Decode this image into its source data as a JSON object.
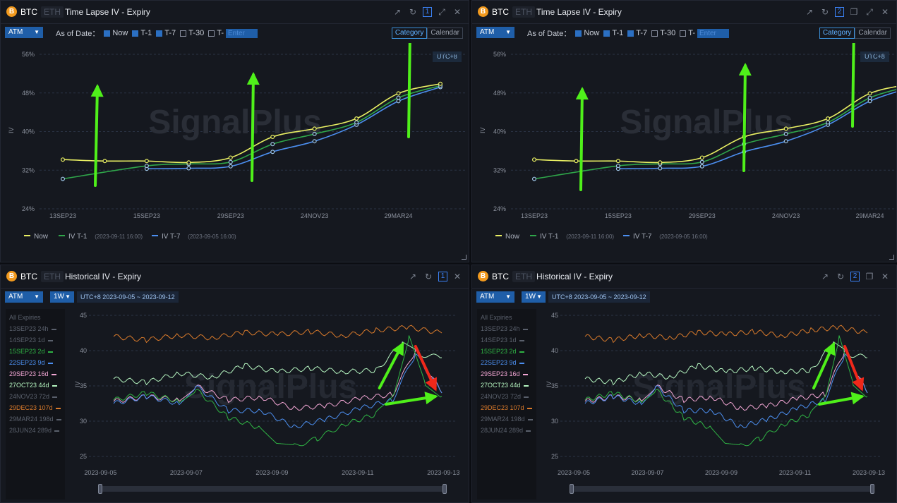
{
  "panels": [
    {
      "id": "tl1",
      "coin_symbol": "B",
      "coin": "BTC",
      "alt_coin": "ETH",
      "title": "Time Lapse IV - Expiry",
      "window_number": "1",
      "selector": "ATM",
      "as_of_label": "As of Date：",
      "checks": [
        {
          "label": "Now",
          "checked": true
        },
        {
          "label": "T-1",
          "checked": true
        },
        {
          "label": "T-7",
          "checked": true
        },
        {
          "label": "T-30",
          "checked": false
        },
        {
          "label": "T-",
          "checked": false
        }
      ],
      "enter_placeholder": "Enter",
      "toggle": [
        "Category",
        "Calendar"
      ],
      "utc": "UTC+8"
    },
    {
      "id": "tl2",
      "coin_symbol": "B",
      "coin": "BTC",
      "alt_coin": "ETH",
      "title": "Time Lapse IV - Expiry",
      "window_number": "2",
      "selector": "ATM",
      "as_of_label": "As of Date：",
      "checks": [
        {
          "label": "Now",
          "checked": true
        },
        {
          "label": "T-1",
          "checked": true
        },
        {
          "label": "T-7",
          "checked": true
        },
        {
          "label": "T-30",
          "checked": false
        },
        {
          "label": "T-",
          "checked": false
        }
      ],
      "enter_placeholder": "Enter",
      "toggle": [
        "Category",
        "Calendar"
      ],
      "utc": "UTC+8"
    },
    {
      "id": "h1",
      "coin_symbol": "B",
      "coin": "BTC",
      "alt_coin": "ETH",
      "title": "Historical IV - Expiry",
      "window_number": "1",
      "selector": "ATM",
      "period": "1W",
      "date_range": "UTC+8 2023-09-05 ~ 2023-09-12"
    },
    {
      "id": "h2",
      "coin_symbol": "B",
      "coin": "BTC",
      "alt_coin": "ETH",
      "title": "Historical IV - Expiry",
      "window_number": "2",
      "selector": "ATM",
      "period": "1W",
      "date_range": "UTC+8 2023-09-05 ~ 2023-09-12"
    }
  ],
  "watermark": "SignalPlus",
  "expiries": [
    {
      "label": "All Expiries",
      "color": "#5a606c"
    },
    {
      "label": "13SEP23 24h",
      "color": "#5a606c"
    },
    {
      "label": "14SEP23 1d",
      "color": "#5a606c"
    },
    {
      "label": "15SEP23 2d",
      "color": "#2fb344"
    },
    {
      "label": "22SEP23 9d",
      "color": "#4c8ff0"
    },
    {
      "label": "29SEP23 16d",
      "color": "#f2a6d4"
    },
    {
      "label": "27OCT23 44d",
      "color": "#b5f5c0"
    },
    {
      "label": "24NOV23 72d",
      "color": "#5a606c"
    },
    {
      "label": "29DEC23 107d",
      "color": "#d97a2b"
    },
    {
      "label": "29MAR24 198d",
      "color": "#5a606c"
    },
    {
      "label": "28JUN24 289d",
      "color": "#5a606c"
    }
  ],
  "chart_data": [
    {
      "type": "line",
      "chart": "Time Lapse IV - Expiry",
      "ylabel": "IV",
      "x": [
        "13SEP23",
        "14SEP23",
        "15SEP23",
        "22SEP23",
        "29SEP23",
        "27OCT23",
        "24NOV23",
        "29DEC23",
        "29MAR24",
        "28JUN24"
      ],
      "y_ticks": [
        "56%",
        "48%",
        "40%",
        "32%",
        "24%"
      ],
      "x_ticks": [
        "13SEP23",
        "15SEP23",
        "29SEP23",
        "24NOV23",
        "29MAR24"
      ],
      "ylim": [
        24,
        56
      ],
      "series": [
        {
          "name": "Now",
          "legend": "Now",
          "color": "#e9ef63",
          "values": [
            34.2,
            33.9,
            33.9,
            33.6,
            34.6,
            38.9,
            40.6,
            42.7,
            47.9,
            49.9
          ]
        },
        {
          "name": "IV T-1",
          "legend_note": "(2023-09-11 16:00)",
          "color": "#2fa64a",
          "values": [
            30.2,
            null,
            32.9,
            33.3,
            33.7,
            37.4,
            39.5,
            41.9,
            47.0,
            49.5
          ]
        },
        {
          "name": "IV T-7",
          "legend_note": "(2023-09-05 16:00)",
          "color": "#4c8ff0",
          "values": [
            null,
            null,
            32.3,
            32.4,
            32.8,
            35.8,
            38.0,
            41.4,
            46.3,
            49.2
          ]
        }
      ],
      "legend_placement": "bottom-left"
    },
    {
      "type": "line",
      "chart": "Historical IV - Expiry",
      "ylabel": "IV",
      "x_ticks": [
        "2023-09-05",
        "2023-09-07",
        "2023-09-09",
        "2023-09-11",
        "2023-09-13"
      ],
      "y_ticks": [
        "45",
        "40",
        "35",
        "30",
        "25"
      ],
      "ylim": [
        25,
        45
      ],
      "series": [
        {
          "name": "29DEC23 107d",
          "color": "#d97a2b",
          "points": [
            [
              0,
              42.0
            ],
            [
              0.1,
              41.5
            ],
            [
              0.2,
              42.2
            ],
            [
              0.3,
              41.8
            ],
            [
              0.4,
              42.6
            ],
            [
              0.5,
              42.3
            ],
            [
              0.6,
              42.7
            ],
            [
              0.7,
              42.1
            ],
            [
              0.8,
              42.9
            ],
            [
              0.9,
              43.3
            ],
            [
              1.0,
              42.5
            ]
          ]
        },
        {
          "name": "27OCT23 44d",
          "color": "#b5f5c0",
          "points": [
            [
              0,
              36.0
            ],
            [
              0.1,
              35.5
            ],
            [
              0.2,
              36.8
            ],
            [
              0.3,
              36.2
            ],
            [
              0.4,
              37.9
            ],
            [
              0.5,
              37.0
            ],
            [
              0.6,
              37.5
            ],
            [
              0.7,
              37.0
            ],
            [
              0.8,
              37.2
            ],
            [
              0.88,
              41.0
            ],
            [
              0.93,
              39.5
            ],
            [
              1.0,
              39.0
            ]
          ]
        },
        {
          "name": "29SEP23 16d",
          "color": "#f2a6d4",
          "points": [
            [
              0,
              32.8
            ],
            [
              0.1,
              33.5
            ],
            [
              0.2,
              33.0
            ],
            [
              0.25,
              35.0
            ],
            [
              0.35,
              33.0
            ],
            [
              0.45,
              33.4
            ],
            [
              0.55,
              31.8
            ],
            [
              0.65,
              32.2
            ],
            [
              0.75,
              33.2
            ],
            [
              0.85,
              33.8
            ],
            [
              0.92,
              40.0
            ],
            [
              1.0,
              34.0
            ]
          ]
        },
        {
          "name": "22SEP23 9d",
          "color": "#4c8ff0",
          "points": [
            [
              0,
              32.5
            ],
            [
              0.1,
              33.5
            ],
            [
              0.2,
              32.5
            ],
            [
              0.25,
              35.0
            ],
            [
              0.35,
              31.5
            ],
            [
              0.45,
              31.5
            ],
            [
              0.55,
              29.2
            ],
            [
              0.65,
              30.3
            ],
            [
              0.75,
              31.8
            ],
            [
              0.85,
              33.0
            ],
            [
              0.92,
              39.5
            ],
            [
              1.0,
              34.0
            ]
          ]
        },
        {
          "name": "15SEP23 2d",
          "color": "#2fb344",
          "points": [
            [
              0,
              33.0
            ],
            [
              0.1,
              34.0
            ],
            [
              0.2,
              32.8
            ],
            [
              0.25,
              34.5
            ],
            [
              0.35,
              30.5
            ],
            [
              0.45,
              29.0
            ],
            [
              0.5,
              27.0
            ],
            [
              0.55,
              26.5
            ],
            [
              0.62,
              27.5
            ],
            [
              0.7,
              29.5
            ],
            [
              0.8,
              31.0
            ],
            [
              0.86,
              34.5
            ],
            [
              0.9,
              42.0
            ],
            [
              0.95,
              35.0
            ],
            [
              1.0,
              33.5
            ]
          ]
        }
      ]
    }
  ]
}
